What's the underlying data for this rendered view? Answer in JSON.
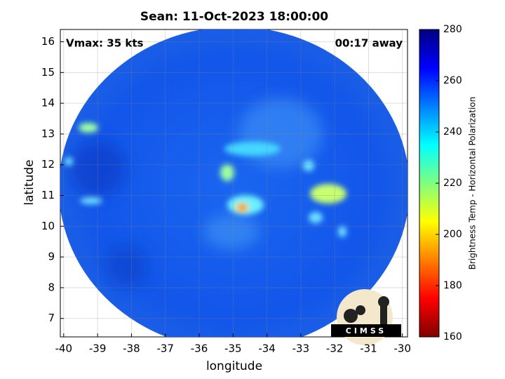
{
  "chart_data": {
    "type": "image_map",
    "title": "Sean: 11-Oct-2023 18:00:00",
    "annotations": [
      "Vmax: 35 kts",
      "00:17 away"
    ],
    "xlabel": "longitude",
    "ylabel": "latitude",
    "xlim": [
      -40.1,
      -29.85
    ],
    "xticks": [
      -40,
      -39,
      -38,
      -37,
      -36,
      -35,
      -34,
      -33,
      -32,
      -31,
      -30
    ],
    "ylim": [
      6.4,
      16.4
    ],
    "yticks": [
      7,
      8,
      9,
      10,
      11,
      12,
      13,
      14,
      15,
      16
    ],
    "grid": true,
    "colorbar": {
      "label": "Brightness Temp - Horizontal Polarization",
      "lim": [
        160,
        280
      ],
      "ticks": [
        160,
        180,
        200,
        220,
        240,
        260,
        280
      ],
      "colormap": "jet"
    },
    "logo": "CIMSS"
  }
}
